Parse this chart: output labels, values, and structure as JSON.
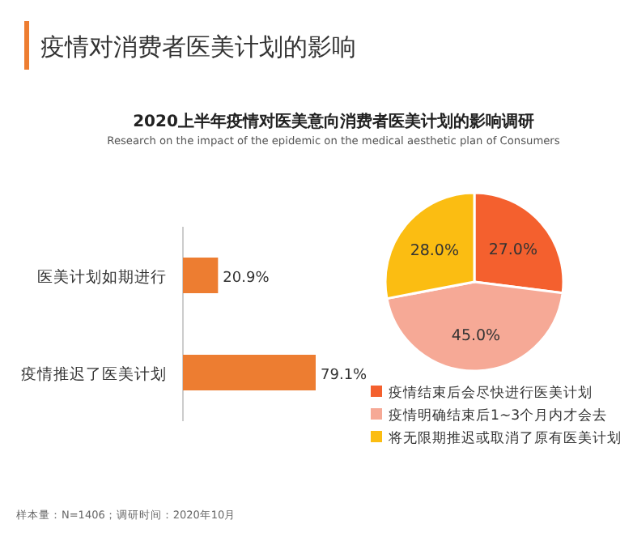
{
  "chart_data": [
    {
      "type": "bar",
      "orientation": "horizontal",
      "title": "疫情对消费者医美计划的影响",
      "subtitle": "2020上半年疫情对医美意向消费者医美计划的影响调研",
      "annotations": [
        "Research on the impact of the epidemic on the medical aesthetic plan of Consumers",
        "样本量：N=1406；调研时间：2020年10月"
      ],
      "categories": [
        "医美计划如期进行",
        "疫情推迟了医美计划"
      ],
      "values": [
        20.9,
        79.1
      ],
      "value_labels": [
        "20.9%",
        "79.1%"
      ],
      "color": "#ed7d31"
    },
    {
      "type": "pie",
      "categories": [
        "疫情结束后会尽快进行医美计划",
        "疫情明确结束后1~3个月内才会去",
        "将无限期推迟或取消了原有医美计划"
      ],
      "values": [
        27.0,
        45.0,
        28.0
      ],
      "value_labels": [
        "27.0%",
        "45.0%",
        "28.0%"
      ],
      "colors": [
        "#f4602e",
        "#f6a996",
        "#fbbd12"
      ],
      "legend": "bottom"
    }
  ]
}
